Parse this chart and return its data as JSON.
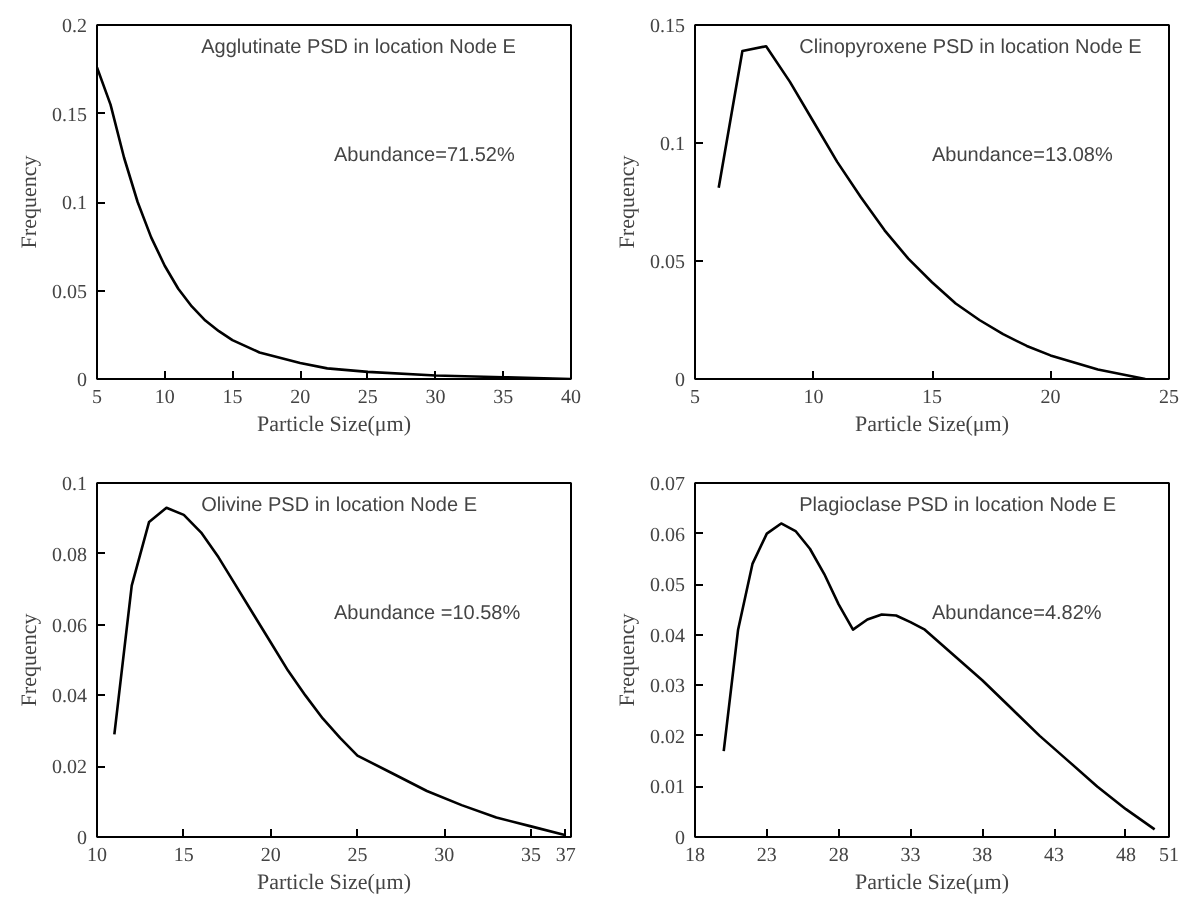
{
  "chart_data": [
    {
      "type": "line",
      "title": "Agglutinate PSD in location Node E",
      "xlabel": "Particle Size(μm)",
      "ylabel": "Frequency",
      "annotations": [
        "Abundance=71.52%"
      ],
      "xlim": [
        5,
        40
      ],
      "ylim": [
        0,
        0.2
      ],
      "xticks": [
        5,
        10,
        15,
        20,
        25,
        30,
        35,
        40
      ],
      "yticks": [
        0,
        0.05,
        0.1,
        0.15,
        0.2
      ],
      "series": [
        {
          "color": "#000000",
          "x": [
            5,
            6,
            7,
            8,
            9,
            10,
            11,
            12,
            13,
            14,
            15,
            17,
            20,
            22,
            25,
            30,
            35,
            40
          ],
          "values": [
            0.176,
            0.155,
            0.125,
            0.1,
            0.08,
            0.064,
            0.051,
            0.041,
            0.033,
            0.027,
            0.022,
            0.015,
            0.009,
            0.006,
            0.004,
            0.002,
            0.001,
            0
          ]
        }
      ]
    },
    {
      "type": "line",
      "title": "Clinopyroxene PSD in location Node E",
      "xlabel": "Particle Size(μm)",
      "ylabel": "Frequency",
      "annotations": [
        "Abundance=13.08%"
      ],
      "xlim": [
        5,
        25
      ],
      "ylim": [
        0,
        0.15
      ],
      "xticks": [
        5,
        10,
        15,
        20,
        25
      ],
      "yticks": [
        0,
        0.05,
        0.1,
        0.15
      ],
      "series": [
        {
          "color": "#000000",
          "x": [
            6,
            7,
            8,
            9,
            10,
            11,
            12,
            13,
            14,
            15,
            16,
            17,
            18,
            19,
            20,
            21,
            22,
            23,
            24
          ],
          "values": [
            0.081,
            0.139,
            0.141,
            0.126,
            0.109,
            0.092,
            0.077,
            0.063,
            0.051,
            0.041,
            0.032,
            0.025,
            0.019,
            0.014,
            0.01,
            0.007,
            0.004,
            0.002,
            0
          ]
        }
      ]
    },
    {
      "type": "line",
      "title": "Olivine PSD in location Node E",
      "xlabel": "Particle Size(μm)",
      "ylabel": "Frequency",
      "annotations": [
        "Abundance =10.58%"
      ],
      "xlim": [
        10,
        37.3
      ],
      "ylim": [
        0,
        0.1
      ],
      "xticks": [
        10,
        15,
        20,
        25,
        30,
        35,
        37
      ],
      "yticks": [
        0,
        0.02,
        0.04,
        0.06,
        0.08,
        0.1
      ],
      "series": [
        {
          "color": "#000000",
          "x": [
            11,
            12,
            13,
            14,
            15,
            16,
            17,
            18,
            19,
            20,
            21,
            22,
            23,
            24,
            25,
            27,
            29,
            31,
            33,
            35,
            37
          ],
          "values": [
            0.029,
            0.071,
            0.089,
            0.093,
            0.091,
            0.086,
            0.079,
            0.071,
            0.063,
            0.055,
            0.047,
            0.04,
            0.0335,
            0.028,
            0.023,
            0.018,
            0.013,
            0.009,
            0.0055,
            0.003,
            0.0005
          ]
        }
      ]
    },
    {
      "type": "line",
      "title": "Plagioclase PSD in location Node E",
      "xlabel": "Particle Size(μm)",
      "ylabel": "Frequency",
      "annotations": [
        "Abundance=4.82%"
      ],
      "xlim": [
        18,
        51
      ],
      "ylim": [
        0,
        0.07
      ],
      "xticks": [
        18,
        23,
        28,
        33,
        38,
        43,
        48,
        51
      ],
      "yticks": [
        0,
        0.01,
        0.02,
        0.03,
        0.04,
        0.05,
        0.06,
        0.07
      ],
      "series": [
        {
          "color": "#000000",
          "x": [
            20,
            21,
            22,
            23,
            24,
            25,
            26,
            27,
            28,
            29,
            30,
            31,
            32,
            33,
            34,
            36,
            38,
            40,
            42,
            44,
            46,
            48,
            50
          ],
          "values": [
            0.017,
            0.041,
            0.054,
            0.06,
            0.062,
            0.0605,
            0.057,
            0.052,
            0.046,
            0.041,
            0.043,
            0.044,
            0.0438,
            0.0425,
            0.041,
            0.036,
            0.031,
            0.0255,
            0.02,
            0.015,
            0.01,
            0.0055,
            0.0015
          ]
        }
      ]
    }
  ]
}
